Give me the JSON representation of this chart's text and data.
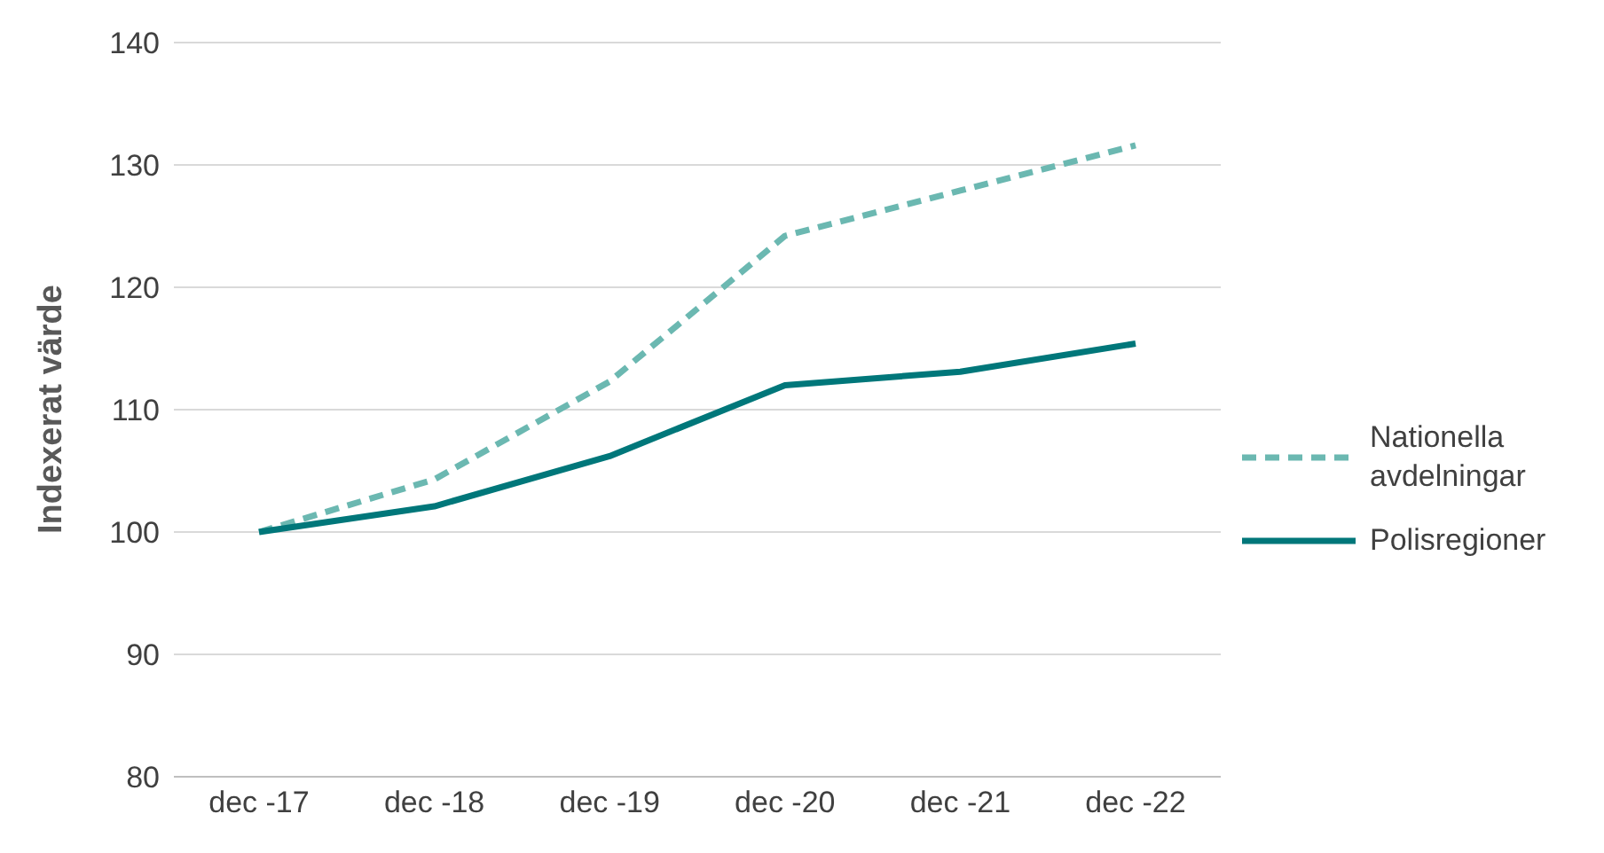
{
  "chart_data": {
    "type": "line",
    "ylabel": "Indexerat värde",
    "categories": [
      "dec -17",
      "dec -18",
      "dec -19",
      "dec -20",
      "dec -21",
      "dec -22"
    ],
    "series": [
      {
        "name": "Nationella avdelningar",
        "color": "#6bb8b1",
        "line_style": "dashed",
        "values": [
          100,
          104.3,
          112.3,
          124.2,
          127.9,
          131.6
        ]
      },
      {
        "name": "Polisregioner",
        "color": "#00777a",
        "line_style": "solid",
        "values": [
          100,
          102.1,
          106.2,
          112,
          113.1,
          115.4
        ]
      }
    ],
    "ylim": [
      80,
      140
    ],
    "yticks": [
      80,
      90,
      100,
      110,
      120,
      130,
      140
    ],
    "grid": "y",
    "legend": "right",
    "marker": "none"
  }
}
